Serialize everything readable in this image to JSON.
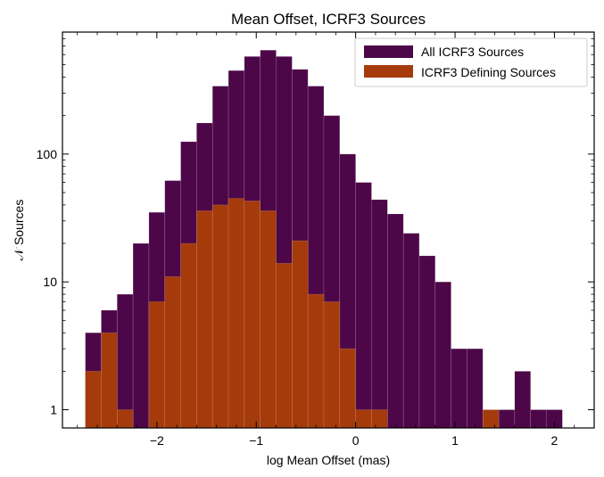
{
  "chart_data": {
    "type": "bar",
    "title": "Mean Offset, ICRF3 Sources",
    "xlabel": "log Mean Offset (mas)",
    "ylabel": "𝒩 Sources",
    "yscale": "log",
    "xlim": [
      -2.95,
      2.4
    ],
    "ylim": [
      0.72,
      900
    ],
    "x_ticks": [
      -2,
      -1,
      0,
      1,
      2
    ],
    "x_tick_labels": [
      "−2",
      "−1",
      "0",
      "1",
      "2"
    ],
    "y_ticks": [
      1,
      10,
      100
    ],
    "y_tick_labels": [
      "1",
      "10",
      "100"
    ],
    "bin_edges": [
      -2.72,
      -2.56,
      -2.4,
      -2.24,
      -2.08,
      -1.92,
      -1.76,
      -1.6,
      -1.44,
      -1.28,
      -1.12,
      -0.96,
      -0.8,
      -0.64,
      -0.48,
      -0.32,
      -0.16,
      0.0,
      0.16,
      0.32,
      0.48,
      0.64,
      0.8,
      0.96,
      1.12,
      1.28,
      1.44,
      1.6,
      1.76,
      1.92,
      2.08
    ],
    "legend_position": "top-right",
    "series": [
      {
        "name": "All ICRF3 Sources",
        "color": "#4d0748",
        "values": [
          4,
          6,
          8,
          20,
          35,
          62,
          125,
          175,
          340,
          450,
          580,
          650,
          580,
          460,
          340,
          200,
          100,
          60,
          44,
          34,
          24,
          16,
          10,
          3,
          3,
          1,
          1,
          2,
          1,
          1
        ]
      },
      {
        "name": "ICRF3 Defining Sources",
        "color": "#a53b0b",
        "values": [
          2,
          4,
          1,
          0,
          7,
          11,
          20,
          36,
          40,
          45,
          43,
          36,
          14,
          21,
          8,
          7,
          3,
          1,
          1,
          0,
          0,
          0,
          0,
          0,
          0,
          1,
          0,
          0,
          0,
          0
        ]
      }
    ]
  }
}
